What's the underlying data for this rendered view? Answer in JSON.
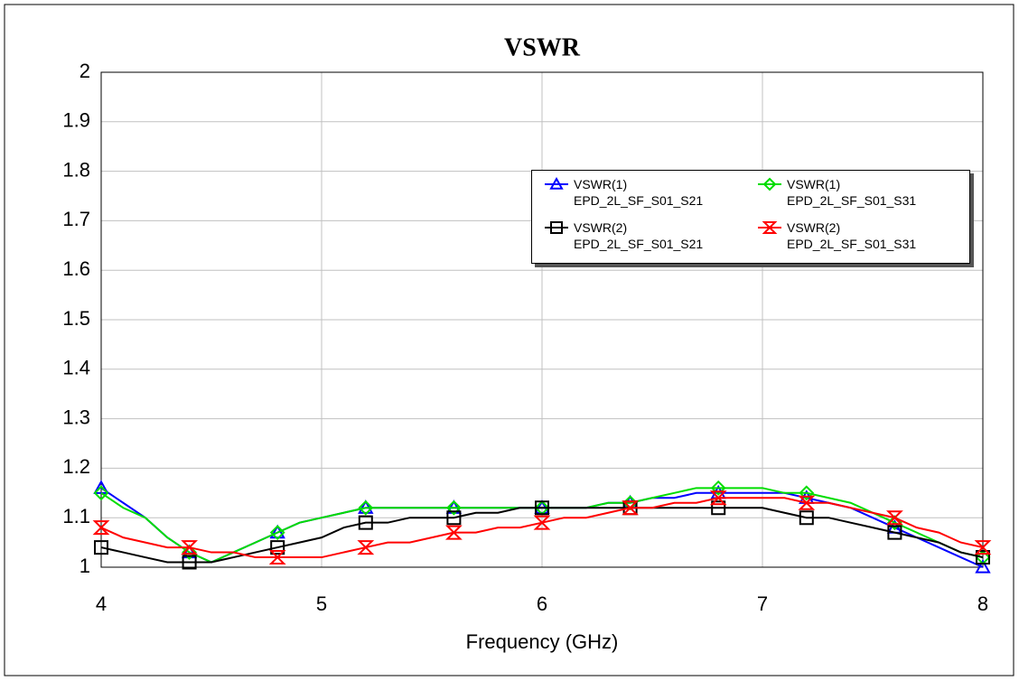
{
  "chart_data": {
    "type": "line",
    "title": "VSWR",
    "x_label": "Frequency (GHz)",
    "x": [
      4.0,
      4.1,
      4.2,
      4.3,
      4.4,
      4.5,
      4.6,
      4.7,
      4.8,
      4.9,
      5.0,
      5.1,
      5.2,
      5.3,
      5.4,
      5.5,
      5.6,
      5.7,
      5.8,
      5.9,
      6.0,
      6.1,
      6.2,
      6.3,
      6.4,
      6.5,
      6.6,
      6.7,
      6.8,
      6.9,
      7.0,
      7.1,
      7.2,
      7.3,
      7.4,
      7.5,
      7.6,
      7.7,
      7.8,
      7.9,
      8.0
    ],
    "series": [
      {
        "name": "VSWR(1) EPD_2L_SF_S01_S21",
        "color": "#0000ff",
        "marker": "triangle",
        "values": [
          1.16,
          1.13,
          1.1,
          1.06,
          1.03,
          1.01,
          1.03,
          1.05,
          1.07,
          1.09,
          1.1,
          1.11,
          1.12,
          1.12,
          1.12,
          1.12,
          1.12,
          1.12,
          1.12,
          1.12,
          1.12,
          1.12,
          1.12,
          1.13,
          1.13,
          1.14,
          1.14,
          1.15,
          1.15,
          1.15,
          1.15,
          1.15,
          1.14,
          1.13,
          1.12,
          1.1,
          1.08,
          1.06,
          1.04,
          1.02,
          1.0
        ]
      },
      {
        "name": "VSWR(1) EPD_2L_SF_S01_S31",
        "color": "#00dd00",
        "marker": "diamond",
        "values": [
          1.15,
          1.12,
          1.1,
          1.06,
          1.03,
          1.01,
          1.03,
          1.05,
          1.07,
          1.09,
          1.1,
          1.11,
          1.12,
          1.12,
          1.12,
          1.12,
          1.12,
          1.12,
          1.12,
          1.12,
          1.12,
          1.12,
          1.12,
          1.13,
          1.13,
          1.14,
          1.15,
          1.16,
          1.16,
          1.16,
          1.16,
          1.15,
          1.15,
          1.14,
          1.13,
          1.11,
          1.09,
          1.07,
          1.05,
          1.03,
          1.02
        ]
      },
      {
        "name": "VSWR(2) EPD_2L_SF_S01_S21",
        "color": "#000000",
        "marker": "square",
        "values": [
          1.04,
          1.03,
          1.02,
          1.01,
          1.01,
          1.01,
          1.02,
          1.03,
          1.04,
          1.05,
          1.06,
          1.08,
          1.09,
          1.09,
          1.1,
          1.1,
          1.1,
          1.11,
          1.11,
          1.12,
          1.12,
          1.12,
          1.12,
          1.12,
          1.12,
          1.12,
          1.12,
          1.12,
          1.12,
          1.12,
          1.12,
          1.11,
          1.1,
          1.1,
          1.09,
          1.08,
          1.07,
          1.06,
          1.05,
          1.03,
          1.02
        ]
      },
      {
        "name": "VSWR(2) EPD_2L_SF_S01_S31",
        "color": "#ff0000",
        "marker": "hourglass",
        "values": [
          1.08,
          1.06,
          1.05,
          1.04,
          1.04,
          1.03,
          1.03,
          1.02,
          1.02,
          1.02,
          1.02,
          1.03,
          1.04,
          1.05,
          1.05,
          1.06,
          1.07,
          1.07,
          1.08,
          1.08,
          1.09,
          1.1,
          1.1,
          1.11,
          1.12,
          1.12,
          1.13,
          1.13,
          1.14,
          1.14,
          1.14,
          1.14,
          1.13,
          1.13,
          1.12,
          1.11,
          1.1,
          1.08,
          1.07,
          1.05,
          1.04
        ]
      }
    ],
    "xlim": [
      4,
      8
    ],
    "xticks": [
      4,
      5,
      6,
      7,
      8
    ],
    "ylim": [
      1,
      2
    ],
    "yticks": [
      1,
      1.1,
      1.2,
      1.3,
      1.4,
      1.5,
      1.6,
      1.7,
      1.8,
      1.9,
      2
    ],
    "grid": true,
    "legend": "upper right"
  }
}
